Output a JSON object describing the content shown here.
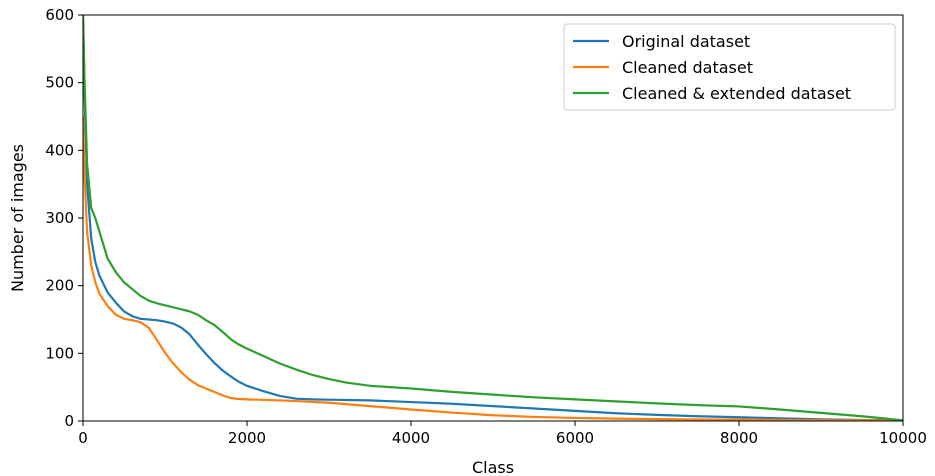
{
  "chart_data": {
    "type": "line",
    "title": "",
    "xlabel": "Class",
    "ylabel": "Number of images",
    "xlim": [
      0,
      10000
    ],
    "ylim": [
      0,
      600
    ],
    "xticks": [
      0,
      2000,
      4000,
      6000,
      8000,
      10000
    ],
    "yticks": [
      0,
      100,
      200,
      300,
      400,
      500,
      600
    ],
    "grid": false,
    "legend_position": "top-right",
    "series": [
      {
        "name": "Original dataset",
        "color": "#1f77b4",
        "points": [
          [
            0,
            600
          ],
          [
            20,
            480
          ],
          [
            50,
            350
          ],
          [
            100,
            270
          ],
          [
            150,
            235
          ],
          [
            200,
            215
          ],
          [
            300,
            190
          ],
          [
            400,
            175
          ],
          [
            500,
            162
          ],
          [
            600,
            155
          ],
          [
            700,
            151
          ],
          [
            800,
            150
          ],
          [
            900,
            149
          ],
          [
            1000,
            147
          ],
          [
            1100,
            144
          ],
          [
            1200,
            138
          ],
          [
            1300,
            128
          ],
          [
            1400,
            113
          ],
          [
            1500,
            99
          ],
          [
            1600,
            86
          ],
          [
            1700,
            75
          ],
          [
            1800,
            66
          ],
          [
            1900,
            58
          ],
          [
            2000,
            52
          ],
          [
            2200,
            44
          ],
          [
            2400,
            37
          ],
          [
            2600,
            33
          ],
          [
            2800,
            32
          ],
          [
            3000,
            31.5
          ],
          [
            3500,
            30.5
          ],
          [
            4000,
            28
          ],
          [
            4500,
            25.5
          ],
          [
            5000,
            22
          ],
          [
            5500,
            18.5
          ],
          [
            6000,
            15
          ],
          [
            6500,
            11.5
          ],
          [
            7000,
            9
          ],
          [
            7500,
            7
          ],
          [
            8000,
            5.5
          ],
          [
            8500,
            4
          ],
          [
            9000,
            2.5
          ],
          [
            9500,
            1.5
          ],
          [
            10000,
            1
          ]
        ]
      },
      {
        "name": "Cleaned dataset",
        "color": "#ff7f0e",
        "points": [
          [
            0,
            450
          ],
          [
            20,
            360
          ],
          [
            50,
            280
          ],
          [
            100,
            230
          ],
          [
            150,
            205
          ],
          [
            200,
            188
          ],
          [
            300,
            170
          ],
          [
            400,
            157
          ],
          [
            500,
            151
          ],
          [
            600,
            149
          ],
          [
            700,
            146
          ],
          [
            800,
            138
          ],
          [
            900,
            120
          ],
          [
            1000,
            101
          ],
          [
            1100,
            85
          ],
          [
            1200,
            72
          ],
          [
            1300,
            61
          ],
          [
            1400,
            53
          ],
          [
            1500,
            48
          ],
          [
            1600,
            43
          ],
          [
            1700,
            38
          ],
          [
            1800,
            34
          ],
          [
            1900,
            32.5
          ],
          [
            2000,
            32
          ],
          [
            2500,
            30
          ],
          [
            3000,
            27
          ],
          [
            3500,
            22
          ],
          [
            4000,
            17
          ],
          [
            4500,
            12.5
          ],
          [
            5000,
            8.5
          ],
          [
            5500,
            6
          ],
          [
            6000,
            4.5
          ],
          [
            6500,
            3.5
          ],
          [
            7000,
            2.8
          ],
          [
            7500,
            2.3
          ],
          [
            8000,
            2
          ],
          [
            8500,
            1.5
          ],
          [
            9000,
            1.2
          ],
          [
            9500,
            1
          ],
          [
            10000,
            0.5
          ]
        ]
      },
      {
        "name": "Cleaned & extended dataset",
        "color": "#2ca02c",
        "points": [
          [
            0,
            600
          ],
          [
            20,
            500
          ],
          [
            50,
            380
          ],
          [
            100,
            315
          ],
          [
            150,
            300
          ],
          [
            200,
            280
          ],
          [
            300,
            240
          ],
          [
            400,
            220
          ],
          [
            500,
            205
          ],
          [
            600,
            195
          ],
          [
            700,
            185
          ],
          [
            800,
            178
          ],
          [
            900,
            174
          ],
          [
            1000,
            171
          ],
          [
            1100,
            168
          ],
          [
            1200,
            165
          ],
          [
            1300,
            162
          ],
          [
            1400,
            157
          ],
          [
            1500,
            149
          ],
          [
            1600,
            142
          ],
          [
            1700,
            132
          ],
          [
            1800,
            121
          ],
          [
            1900,
            113
          ],
          [
            2000,
            107
          ],
          [
            2200,
            96
          ],
          [
            2400,
            85
          ],
          [
            2600,
            76
          ],
          [
            2800,
            68
          ],
          [
            3000,
            62
          ],
          [
            3200,
            57
          ],
          [
            3500,
            52
          ],
          [
            4000,
            48
          ],
          [
            4500,
            43
          ],
          [
            5000,
            39
          ],
          [
            5500,
            35
          ],
          [
            6000,
            32
          ],
          [
            6500,
            29
          ],
          [
            7000,
            26
          ],
          [
            7500,
            23.5
          ],
          [
            8000,
            21.5
          ],
          [
            8500,
            17
          ],
          [
            9000,
            12
          ],
          [
            9500,
            7
          ],
          [
            10000,
            1
          ]
        ]
      }
    ]
  }
}
